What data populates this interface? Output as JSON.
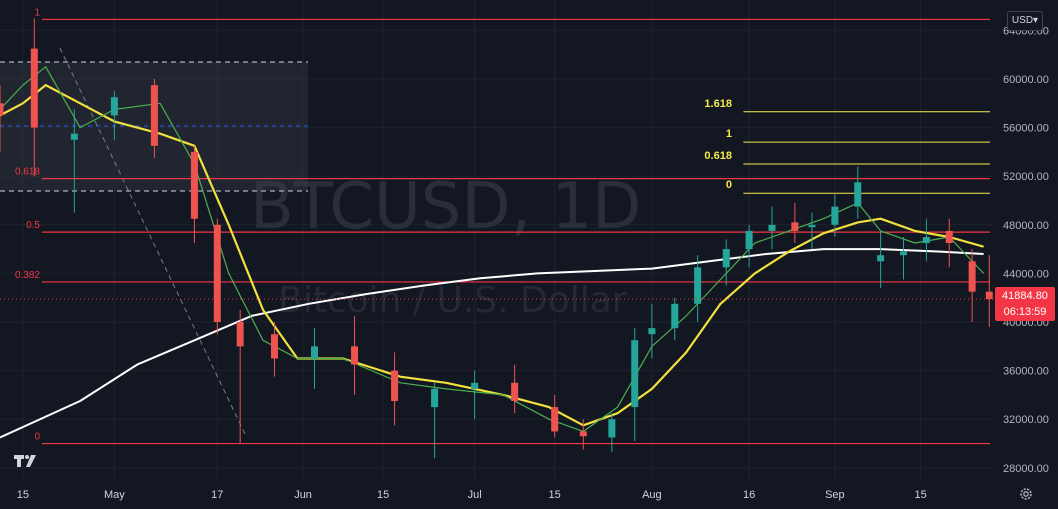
{
  "watermark": {
    "symbol": "BTCUSD, 1D",
    "name": "Bitcoin / U.S. Dollar"
  },
  "currency": "USD",
  "last_price": {
    "value": "41884.80",
    "countdown": "06:13:59"
  },
  "colors": {
    "bg": "#131722",
    "up": "#26a69a",
    "down": "#ef5350",
    "fib": "#f23645",
    "ext": "#f5e94f",
    "ma_slow": "#ffffff",
    "ma_mid": "#f2e03c",
    "ma_fast": "#4caf50"
  },
  "chart_data": {
    "type": "candlestick",
    "ylim": [
      27000,
      66500
    ],
    "y_ticks": [
      "64000.00",
      "60000.00",
      "56000.00",
      "52000.00",
      "48000.00",
      "44000.00",
      "40000.00",
      "36000.00",
      "32000.00",
      "28000.00"
    ],
    "y_tick_values": [
      64000,
      60000,
      56000,
      52000,
      48000,
      44000,
      40000,
      36000,
      32000,
      28000
    ],
    "x_ticks": [
      "15",
      "May",
      "17",
      "Jun",
      "15",
      "Jul",
      "15",
      "Aug",
      "16",
      "Sep",
      "15"
    ],
    "x_tick_days": [
      0,
      16,
      34,
      49,
      63,
      79,
      93,
      110,
      127,
      142,
      157
    ],
    "x_range_days": [
      -4,
      170
    ],
    "fib_retracement": [
      {
        "label": "1",
        "value": 64900
      },
      {
        "label": "0.618",
        "value": 51800
      },
      {
        "label": "0.5",
        "value": 47400
      },
      {
        "label": "0.382",
        "value": 43300
      },
      {
        "label": "0",
        "value": 30000
      }
    ],
    "fib_extension": [
      {
        "label": "1.618",
        "value": 57300
      },
      {
        "label": "1",
        "value": 54800
      },
      {
        "label": "0.618",
        "value": 53000
      },
      {
        "label": "0",
        "value": 50600
      }
    ],
    "last_close": 41884.8,
    "series": [
      {
        "x": [
          -4,
          2,
          9,
          16,
          23,
          30,
          34,
          38,
          44,
          51,
          58,
          65,
          72,
          79,
          86,
          93,
          98,
          103,
          107,
          110,
          114,
          118,
          123,
          127,
          131,
          135,
          138,
          142,
          146,
          150,
          154,
          158,
          162,
          166,
          169
        ],
        "open": [
          58000,
          62500,
          55000,
          57000,
          59500,
          54000,
          48000,
          40000,
          39000,
          37000,
          38000,
          36000,
          33000,
          34500,
          35000,
          33000,
          31000,
          30500,
          33000,
          39000,
          39500,
          41500,
          44500,
          46000,
          47500,
          48200,
          47800,
          48000,
          49500,
          45000,
          45500,
          46500,
          47500,
          45000,
          42500
        ],
        "high": [
          59500,
          65000,
          57500,
          59000,
          60000,
          54500,
          48500,
          41000,
          40000,
          39500,
          40500,
          37500,
          35000,
          36000,
          36500,
          34000,
          32000,
          32500,
          39500,
          41500,
          42000,
          45500,
          46800,
          48000,
          49500,
          49800,
          49000,
          50500,
          52800,
          47500,
          47000,
          48500,
          48500,
          46000,
          45500
        ],
        "low": [
          54000,
          52000,
          49000,
          55000,
          53500,
          46500,
          39000,
          30000,
          35500,
          34500,
          34000,
          31500,
          28800,
          32000,
          32500,
          30500,
          29500,
          29300,
          30200,
          37000,
          38500,
          40000,
          43000,
          44500,
          46000,
          46500,
          46000,
          47000,
          48500,
          42800,
          43500,
          45000,
          44500,
          40000,
          39600
        ],
        "close": [
          57000,
          56000,
          55500,
          58500,
          54500,
          48500,
          40000,
          38000,
          37000,
          38000,
          36500,
          33500,
          34500,
          35000,
          33500,
          31000,
          30600,
          32000,
          38500,
          39500,
          41500,
          44500,
          46000,
          47500,
          48000,
          47500,
          48000,
          49500,
          51500,
          45500,
          45800,
          47000,
          46500,
          42500,
          41884.8
        ]
      },
      {
        "name": "",
        "kind": "ma_slow",
        "x": [
          -4,
          10,
          20,
          30,
          40,
          50,
          60,
          70,
          80,
          90,
          100,
          110,
          120,
          130,
          140,
          150,
          160,
          168
        ],
        "y": [
          30500,
          33500,
          36500,
          38500,
          40500,
          41500,
          42300,
          43000,
          43600,
          44000,
          44200,
          44400,
          45000,
          45600,
          46000,
          46000,
          45800,
          45600
        ]
      },
      {
        "name": "",
        "kind": "ma_mid",
        "x": [
          -4,
          0,
          4,
          10,
          16,
          24,
          30,
          36,
          42,
          48,
          56,
          66,
          74,
          84,
          92,
          98,
          104,
          110,
          116,
          122,
          128,
          134,
          140,
          146,
          150,
          156,
          162,
          168
        ],
        "y": [
          57000,
          58000,
          59500,
          58000,
          56500,
          55500,
          54500,
          48000,
          41000,
          37000,
          37000,
          35500,
          35000,
          34000,
          33000,
          31500,
          32500,
          34500,
          37500,
          41500,
          44000,
          45800,
          47300,
          48200,
          48500,
          47500,
          47000,
          46200
        ]
      },
      {
        "name": "",
        "kind": "ma_fast",
        "x": [
          -4,
          0,
          4,
          10,
          16,
          24,
          30,
          36,
          42,
          48,
          56,
          66,
          74,
          84,
          92,
          98,
          104,
          110,
          116,
          122,
          128,
          134,
          140,
          146,
          150,
          156,
          162,
          168
        ],
        "y": [
          57500,
          59500,
          61000,
          56000,
          57500,
          58000,
          53000,
          44000,
          38500,
          37000,
          37000,
          35000,
          34500,
          34000,
          32000,
          31000,
          33000,
          38000,
          40500,
          43500,
          46500,
          47500,
          48500,
          49800,
          47500,
          46500,
          47000,
          44000
        ]
      }
    ]
  }
}
